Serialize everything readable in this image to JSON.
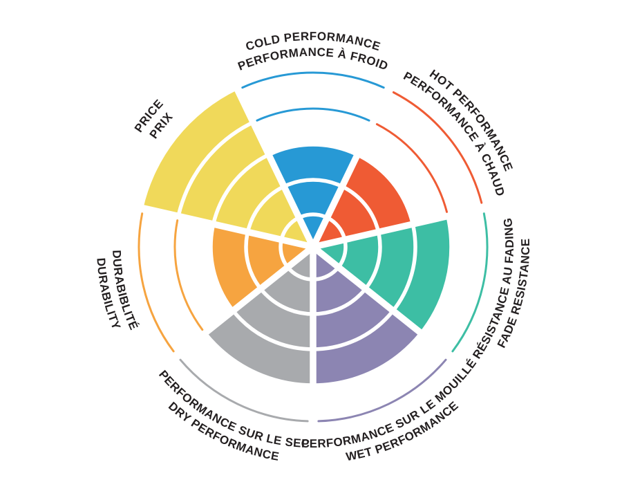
{
  "chart_data": {
    "type": "radial-rating-wheel",
    "max_rings": 5,
    "grid": "white ring separators and white radial sector separators",
    "legend_position": "labels curved around outside of wheel, English outer line / French inner line",
    "background_color": "#ffffff",
    "label_text_color": "#231F20",
    "categories": [
      {
        "id": "cold",
        "label_en": "COLD PERFORMANCE",
        "label_fr": "PERFORMANCE À FROID",
        "value": 3,
        "color": "#2799D5",
        "flipped": false
      },
      {
        "id": "hot",
        "label_en": "HOT PERFORMANCE",
        "label_fr": "PERFORMANCE À CHAUD",
        "value": 3,
        "color": "#EF5B34",
        "flipped": false
      },
      {
        "id": "fade",
        "label_en": "FADE RESISTANCE",
        "label_fr": "RÉSISTANCE AU FADING",
        "value": 4,
        "color": "#3DBEA4",
        "flipped": true
      },
      {
        "id": "wet",
        "label_en": "WET PERFORMANCE",
        "label_fr": "PERFORMANCE SUR LE MOUILLÉ",
        "value": 4,
        "color": "#8C85B2",
        "flipped": true
      },
      {
        "id": "dry",
        "label_en": "DRY PERFORMANCE",
        "label_fr": "PERFORMANCE SUR LE SEC",
        "value": 4,
        "color": "#A8AAAD",
        "flipped": true
      },
      {
        "id": "durability",
        "label_en": "DURABILITY",
        "label_fr": "DURABIBLITÉ",
        "value": 3,
        "color": "#F6A440",
        "flipped": true
      },
      {
        "id": "price",
        "label_en": "PRICE",
        "label_fr": "PRIX",
        "value": 5,
        "color": "#F0D95A",
        "flipped": false
      }
    ]
  }
}
